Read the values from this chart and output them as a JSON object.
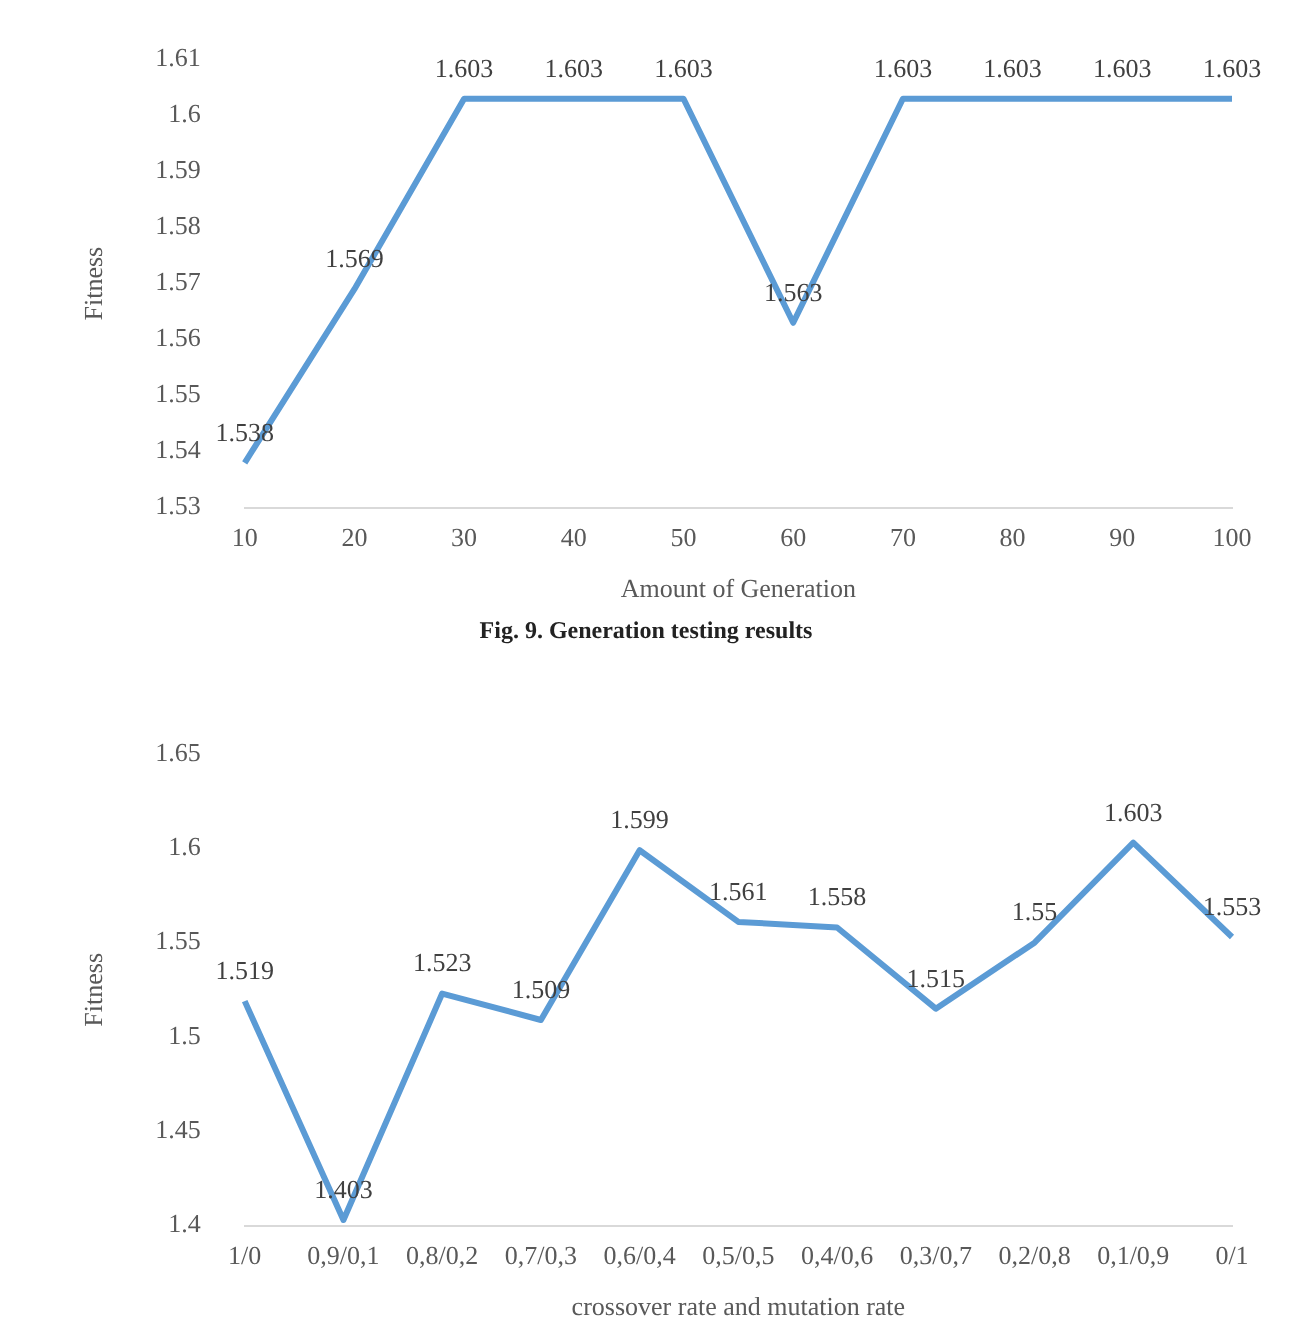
{
  "chart_data": [
    {
      "type": "line",
      "xlabel": "Amount of Generation",
      "ylabel": "Fitness",
      "categories": [
        "10",
        "20",
        "30",
        "40",
        "50",
        "60",
        "70",
        "80",
        "90",
        "100"
      ],
      "series": [
        {
          "color": "#5b9bd5",
          "values": [
            1.538,
            1.569,
            1.603,
            1.603,
            1.603,
            1.563,
            1.603,
            1.603,
            1.603,
            1.603
          ]
        }
      ],
      "ylim": [
        1.53,
        1.61
      ],
      "yticks": [
        1.53,
        1.54,
        1.55,
        1.56,
        1.57,
        1.58,
        1.59,
        {
          "value": 1.6,
          "label": "1.6"
        },
        1.61
      ],
      "data_labels": true,
      "grid": false,
      "legend": false,
      "marker": "none",
      "annotations": [
        "Fig. 9. Generation testing results"
      ]
    },
    {
      "type": "line",
      "xlabel": "crossover rate and mutation rate",
      "ylabel": "Fitness",
      "categories": [
        "1/0",
        "0,9/0,1",
        "0,8/0,2",
        "0,7/0,3",
        "0,6/0,4",
        "0,5/0,5",
        "0,4/0,6",
        "0,3/0,7",
        "0,2/0,8",
        "0,1/0,9",
        "0/1"
      ],
      "series": [
        {
          "color": "#5b9bd5",
          "values": [
            1.519,
            1.403,
            1.523,
            1.509,
            1.599,
            1.561,
            1.558,
            1.515,
            1.55,
            1.603,
            1.553
          ]
        }
      ],
      "ylim": [
        1.4,
        1.65
      ],
      "yticks": [
        {
          "value": 1.4,
          "label": "1.4"
        },
        1.45,
        {
          "value": 1.5,
          "label": "1.5"
        },
        1.55,
        {
          "value": 1.6,
          "label": "1.6"
        },
        1.65
      ],
      "data_labels": true,
      "grid": false,
      "legend": false,
      "marker": "none"
    }
  ]
}
